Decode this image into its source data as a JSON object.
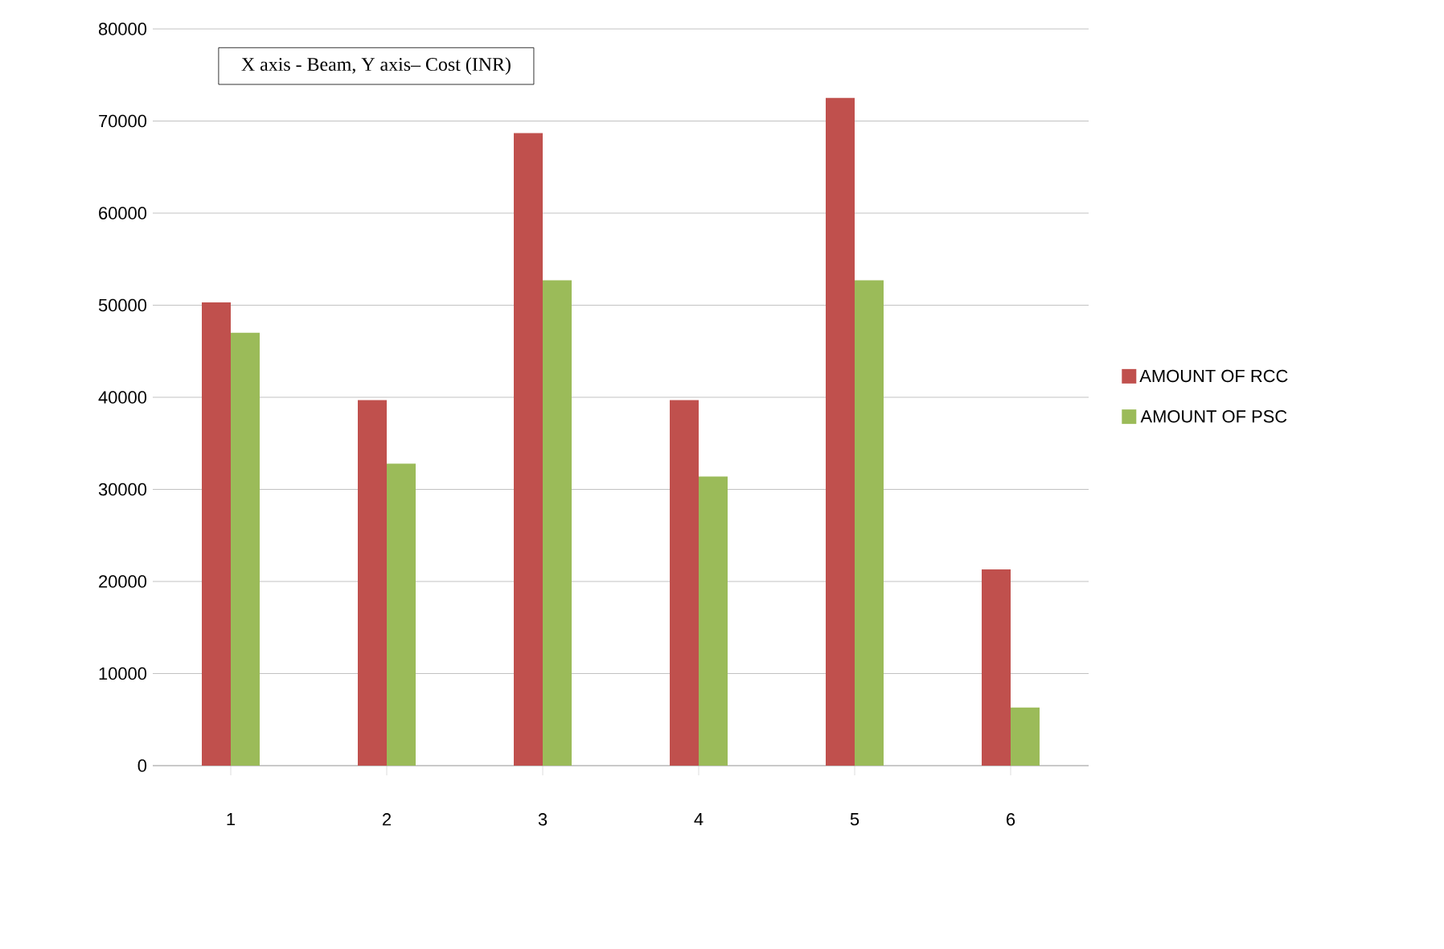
{
  "chart_data": {
    "type": "bar",
    "categories": [
      "1",
      "2",
      "3",
      "4",
      "5",
      "6"
    ],
    "series": [
      {
        "name": "AMOUNT OF RCC",
        "color": "#c0504d",
        "values": [
          50300,
          39700,
          68700,
          39700,
          72500,
          21300
        ]
      },
      {
        "name": "AMOUNT OF PSC",
        "color": "#9bbb59",
        "values": [
          47000,
          32800,
          52700,
          31400,
          52700,
          6300
        ]
      }
    ],
    "ylim": [
      0,
      80000
    ],
    "yticks": [
      0,
      10000,
      20000,
      30000,
      40000,
      50000,
      60000,
      70000,
      80000
    ],
    "grid": "y",
    "legend": "right",
    "annotations": [
      "X axis - Beam, Y axis– Cost (INR)"
    ]
  }
}
